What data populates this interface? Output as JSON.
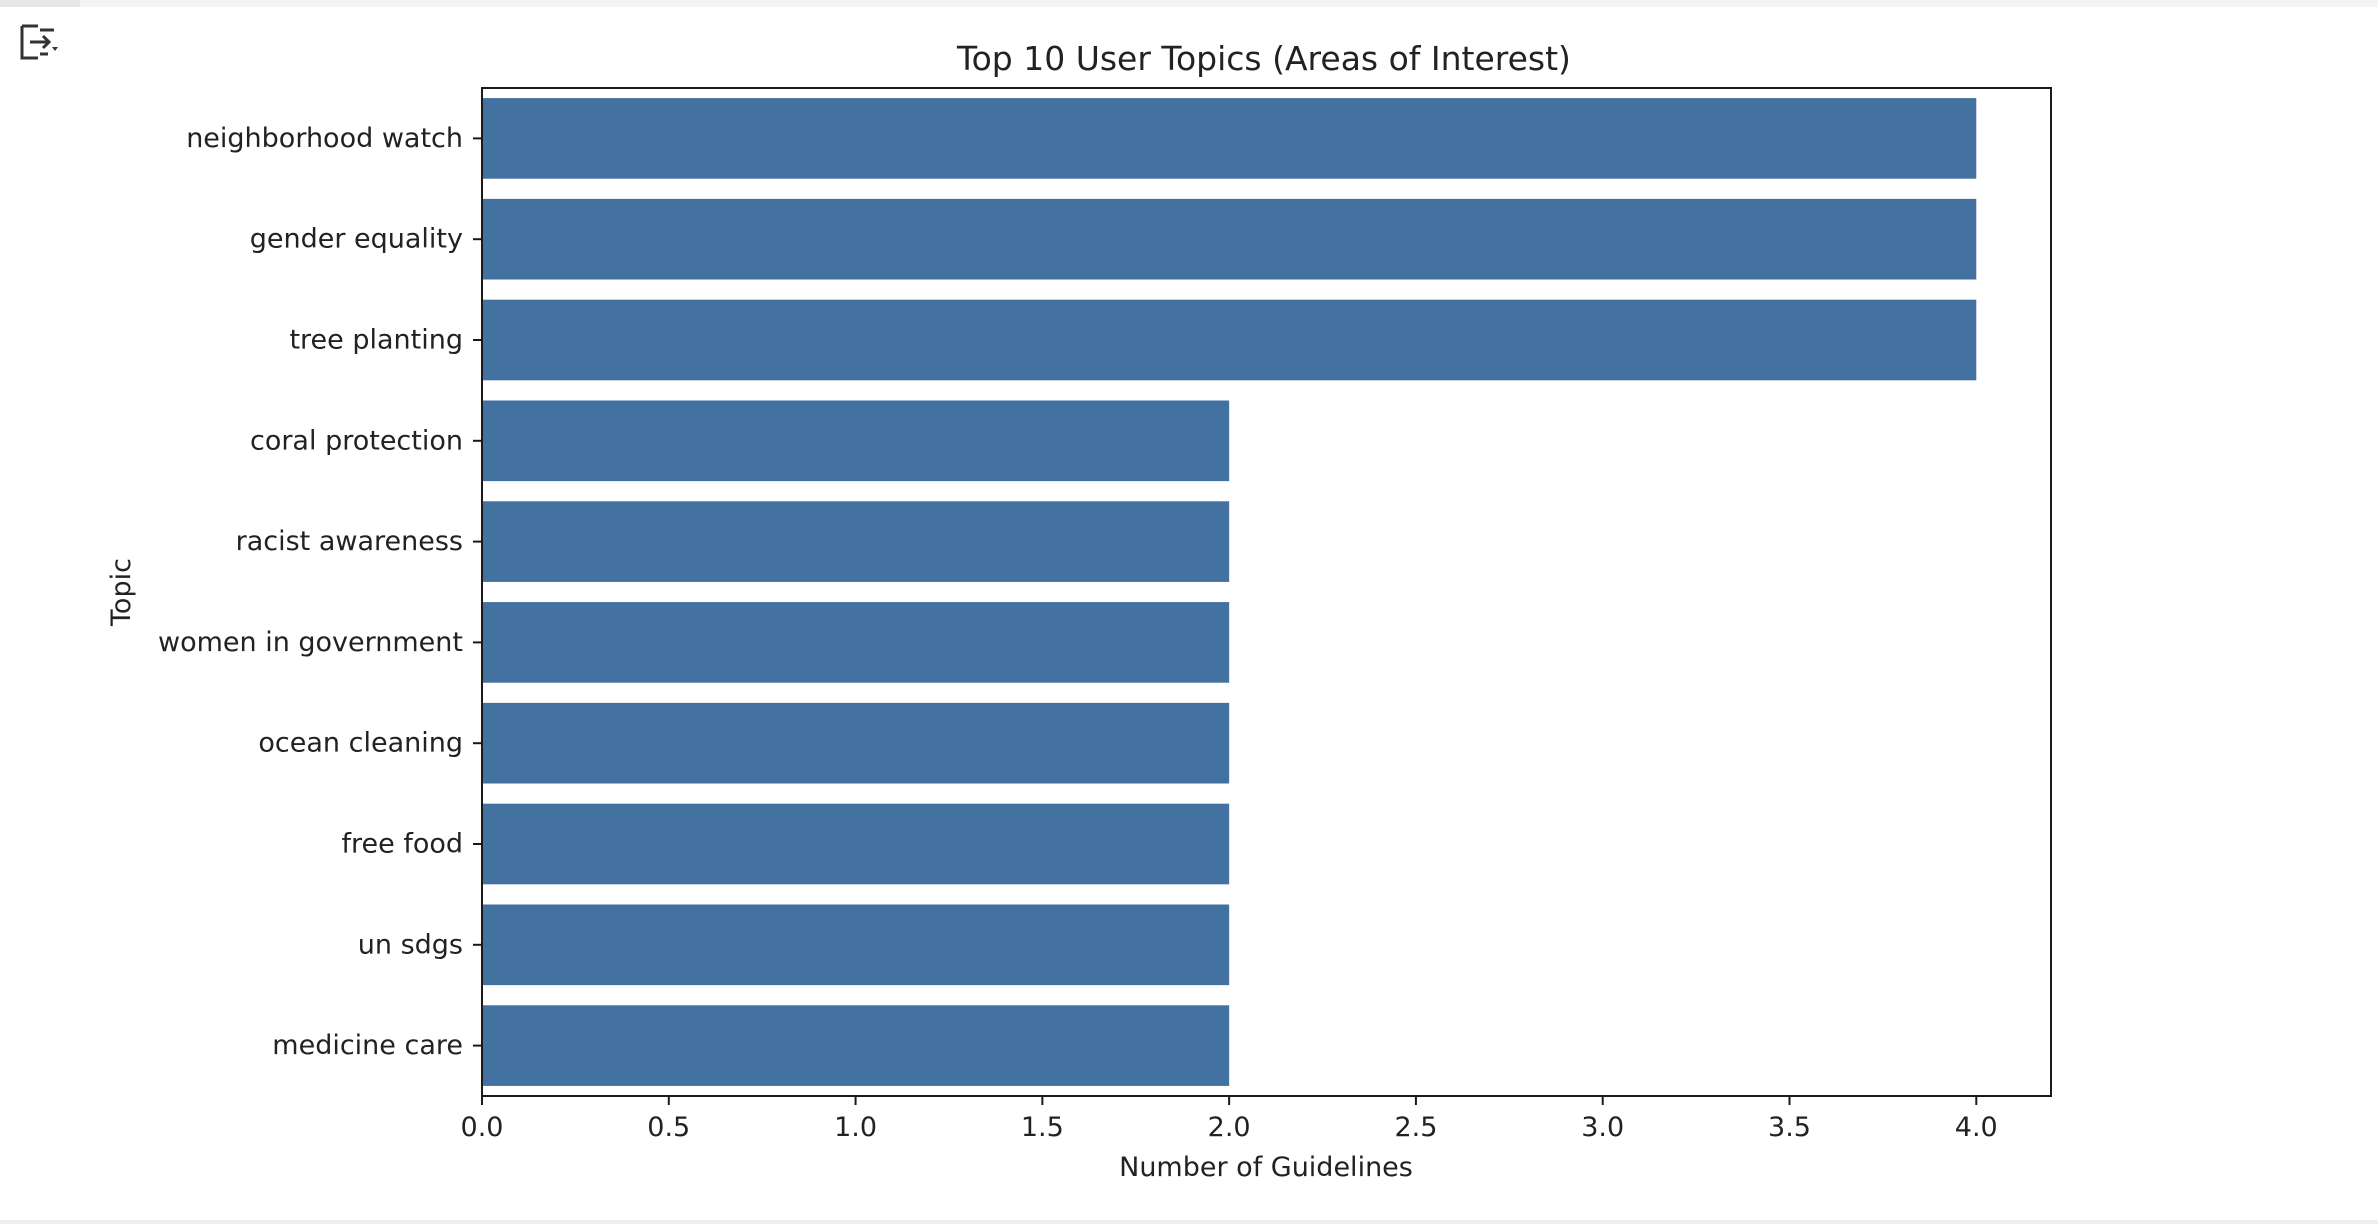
{
  "chart_data": {
    "type": "bar",
    "orientation": "horizontal",
    "title": "Top 10 User Topics (Areas of Interest)",
    "xlabel": "Number of Guidelines",
    "ylabel": "Topic",
    "categories": [
      "neighborhood watch",
      "gender equality",
      "tree planting",
      "coral protection",
      "racist awareness",
      "women in government",
      "ocean cleaning",
      "free food",
      "un sdgs",
      "medicine care"
    ],
    "values": [
      4,
      4,
      4,
      2,
      2,
      2,
      2,
      2,
      2,
      2
    ],
    "xlim": [
      0,
      4.2
    ],
    "xticks": [
      "0.0",
      "0.5",
      "1.0",
      "1.5",
      "2.0",
      "2.5",
      "3.0",
      "3.5",
      "4.0"
    ],
    "grid": false,
    "legend": "none",
    "bar_color": "#4472a0"
  },
  "toolbar": {
    "output_toggle_icon": "output-toggle-icon"
  }
}
